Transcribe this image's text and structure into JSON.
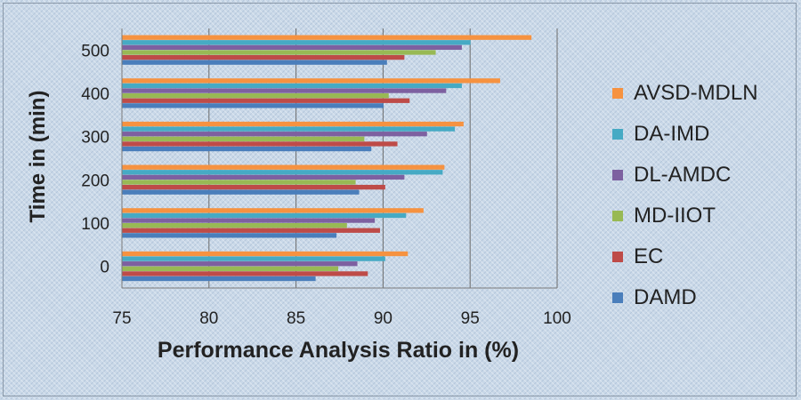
{
  "chart_data": {
    "type": "bar",
    "orientation": "horizontal",
    "xlabel": "Performance Analysis Ratio in (%)",
    "ylabel": "Time in (min)",
    "xlim": [
      75,
      100
    ],
    "xticks": [
      "75",
      "80",
      "85",
      "90",
      "95",
      "100"
    ],
    "categories": [
      "0",
      "100",
      "200",
      "300",
      "400",
      "500"
    ],
    "grid": "vertical",
    "legend_position": "right",
    "series": [
      {
        "name": "DAMD",
        "color": "#4a7ebb",
        "values": [
          86.1,
          87.3,
          88.6,
          89.3,
          90.0,
          90.2
        ]
      },
      {
        "name": "EC",
        "color": "#be4b48",
        "values": [
          89.1,
          89.8,
          90.1,
          90.8,
          91.5,
          91.2
        ]
      },
      {
        "name": "MD-IIOT",
        "color": "#98b954",
        "values": [
          87.4,
          87.9,
          88.4,
          88.9,
          90.3,
          93.0
        ]
      },
      {
        "name": "DL-AMDC",
        "color": "#7d60a0",
        "values": [
          88.5,
          89.5,
          91.2,
          92.5,
          93.6,
          94.5
        ]
      },
      {
        "name": "DA-IMD",
        "color": "#46aac4",
        "values": [
          90.1,
          91.3,
          93.4,
          94.1,
          94.5,
          95.0
        ]
      },
      {
        "name": "AVSD-MDLN",
        "color": "#f69240",
        "values": [
          91.4,
          92.3,
          93.5,
          94.6,
          96.7,
          98.5
        ]
      }
    ]
  }
}
